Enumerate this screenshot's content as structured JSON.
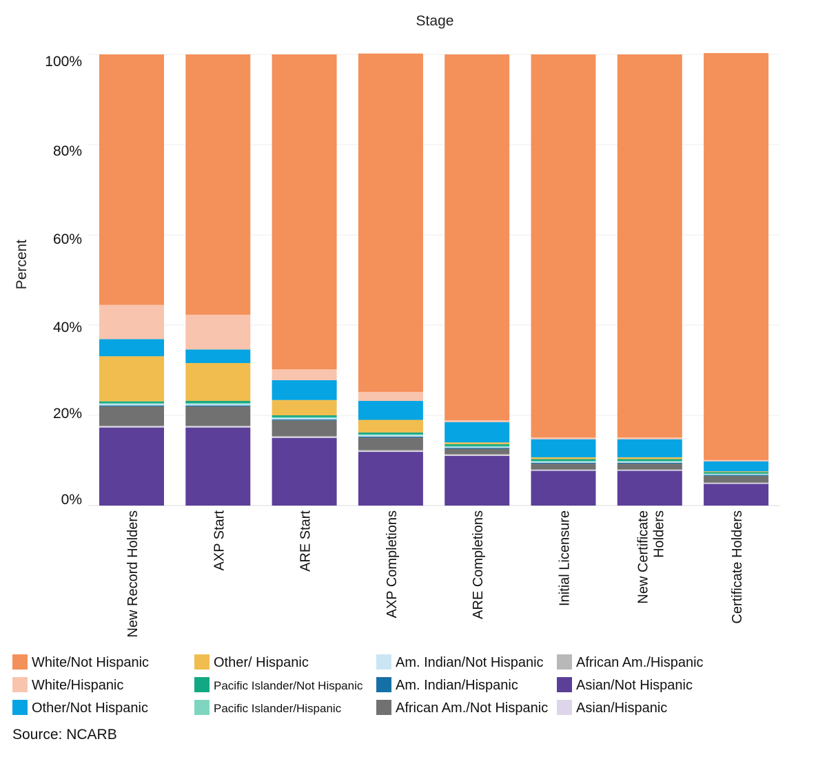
{
  "chart_data": {
    "type": "bar",
    "stacked": true,
    "title": "Stage",
    "ylabel": "Percent",
    "ylim": [
      0,
      100
    ],
    "yticks": [
      "0%",
      "20%",
      "40%",
      "60%",
      "80%",
      "100%"
    ],
    "categories": [
      "New Record Holders",
      "AXP Start",
      "ARE Start",
      "AXP Completions",
      "ARE Completions",
      "Initial Licensure",
      "New Certificate Holders",
      "Certificate Holders"
    ],
    "category_lines": [
      [
        "New Record Holders"
      ],
      [
        "AXP Start"
      ],
      [
        "ARE Start"
      ],
      [
        "AXP Completions"
      ],
      [
        "ARE Completions"
      ],
      [
        "Initial Licensure"
      ],
      [
        "New Certificate",
        "Holders"
      ],
      [
        "Certificate Holders"
      ]
    ],
    "series": [
      {
        "name": "Asian/Not Hispanic",
        "color": "#5b3f99",
        "values": [
          17.3,
          17.3,
          15.0,
          11.9,
          11.0,
          7.7,
          7.7,
          4.8
        ]
      },
      {
        "name": "Asian/Hispanic",
        "color": "#ddd6ea",
        "values": [
          0.2,
          0.2,
          0.2,
          0.2,
          0.2,
          0.2,
          0.2,
          0.2
        ]
      },
      {
        "name": "African Am./Hispanic",
        "color": "#b8b8b8",
        "values": [
          0.2,
          0.2,
          0.2,
          0.2,
          0.2,
          0.1,
          0.1,
          0.1
        ]
      },
      {
        "name": "African Am./Not Hispanic",
        "color": "#717171",
        "values": [
          4.3,
          4.3,
          3.5,
          2.8,
          1.2,
          1.3,
          1.3,
          1.5
        ]
      },
      {
        "name": "Am. Indian/Hispanic",
        "color": "#1570a6",
        "values": [
          0.2,
          0.2,
          0.2,
          0.2,
          0.2,
          0.2,
          0.2,
          0.2
        ]
      },
      {
        "name": "Am. Indian/Not Hispanic",
        "color": "#cbe5f5",
        "values": [
          0.3,
          0.3,
          0.3,
          0.3,
          0.2,
          0.2,
          0.2,
          0.2
        ]
      },
      {
        "name": "Pacific Islander/Hispanic",
        "color": "#7fd6c0",
        "values": [
          0.2,
          0.2,
          0.2,
          0.2,
          0.2,
          0.2,
          0.2,
          0.1
        ]
      },
      {
        "name": "Pacific Islander/Not Hispanic",
        "color": "#13a884",
        "values": [
          0.4,
          0.5,
          0.4,
          0.4,
          0.4,
          0.4,
          0.4,
          0.3
        ]
      },
      {
        "name": "Other/ Hispanic",
        "color": "#f1bd4f",
        "values": [
          10.0,
          8.4,
          3.4,
          2.8,
          0.4,
          0.4,
          0.4,
          0.2
        ]
      },
      {
        "name": "Other/Not Hispanic",
        "color": "#06a4e2",
        "values": [
          3.8,
          3.0,
          4.4,
          4.2,
          4.5,
          4.0,
          4.0,
          2.2
        ]
      },
      {
        "name": "White/Hispanic",
        "color": "#f9c4ad",
        "values": [
          7.6,
          7.7,
          2.4,
          2.0,
          0.4,
          0.4,
          0.4,
          0.3
        ]
      },
      {
        "name": "White/Not Hispanic",
        "color": "#f4905a",
        "values": [
          55.5,
          57.7,
          69.8,
          75.0,
          81.1,
          84.9,
          84.9,
          90.2
        ]
      }
    ],
    "legend": {
      "placement": "bottom",
      "columns": [
        [
          "White/Not Hispanic",
          "White/Hispanic",
          "Other/Not Hispanic"
        ],
        [
          "Other/ Hispanic",
          "Pacific Islander/Not Hispanic",
          "Pacific Islander/Hispanic"
        ],
        [
          "Am. Indian/Not Hispanic",
          "Am. Indian/Hispanic",
          "African Am./Not Hispanic"
        ],
        [
          "African Am./Hispanic",
          "Asian/Not Hispanic",
          "Asian/Hispanic"
        ]
      ]
    },
    "grid": true,
    "source": "Source: NCARB"
  }
}
